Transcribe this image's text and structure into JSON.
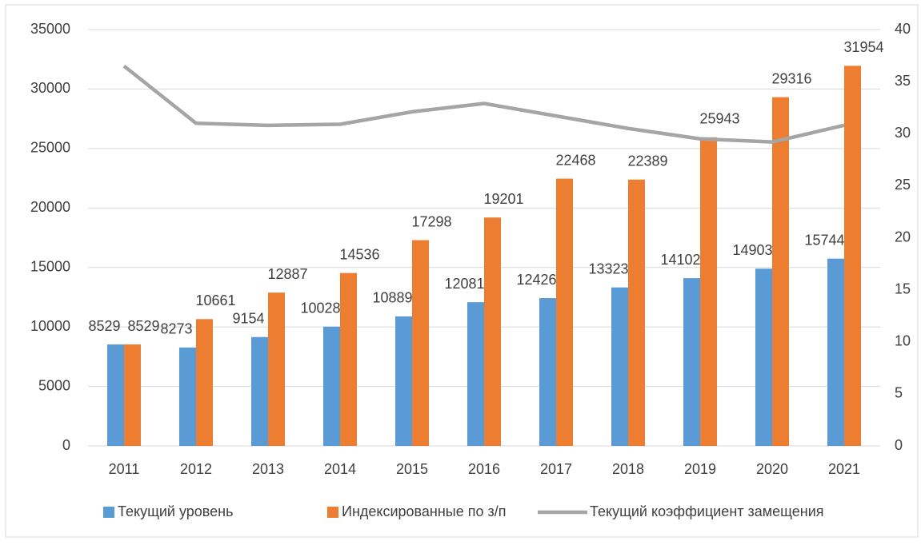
{
  "chart_data": {
    "type": "bar",
    "categories": [
      "2011",
      "2012",
      "2013",
      "2014",
      "2015",
      "2016",
      "2017",
      "2018",
      "2019",
      "2020",
      "2021"
    ],
    "series": [
      {
        "name": "Текущий уровень",
        "color": "#5b9bd5",
        "type": "bar",
        "values": [
          8529,
          8273,
          9154,
          10028,
          10889,
          12081,
          12426,
          13323,
          14102,
          14903,
          15744
        ]
      },
      {
        "name": "Индексированные по з/п",
        "color": "#ed7d31",
        "type": "bar",
        "values": [
          8529,
          10661,
          12887,
          14536,
          17298,
          19201,
          22468,
          22389,
          25943,
          29316,
          31954
        ]
      },
      {
        "name": "Текущий коэффициент замещения",
        "color": "#a5a5a5",
        "type": "line",
        "axis": "y2",
        "values": [
          36.5,
          31.0,
          30.8,
          30.9,
          32.1,
          32.9,
          31.7,
          30.5,
          29.5,
          29.2,
          30.8
        ]
      }
    ],
    "ylim": [
      0,
      35000
    ],
    "yticks": [
      0,
      5000,
      10000,
      15000,
      20000,
      25000,
      30000,
      35000
    ],
    "y2lim": [
      0,
      40
    ],
    "y2ticks": [
      0,
      5,
      10,
      15,
      20,
      25,
      30,
      35,
      40
    ],
    "grid": true,
    "legend": "bottom"
  }
}
